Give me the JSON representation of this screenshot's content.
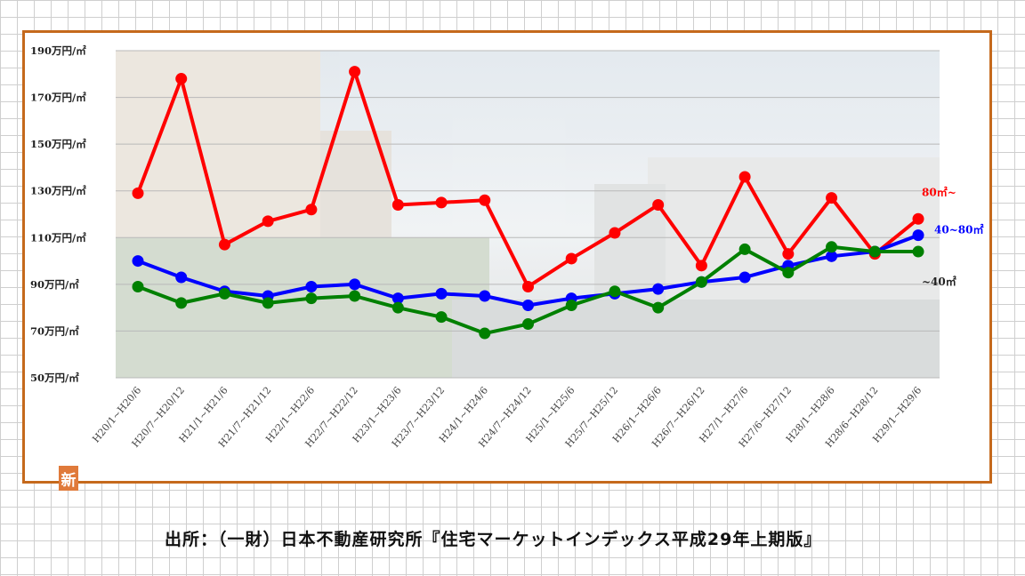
{
  "chart_data": {
    "type": "line",
    "ylim": [
      50,
      190
    ],
    "yticks": [
      "190万円/㎡",
      "170万円/㎡",
      "150万円/㎡",
      "130万円/㎡",
      "110万円/㎡",
      "90万円/㎡",
      "70万円/㎡",
      "50万円/㎡"
    ],
    "ytick_values": [
      190,
      170,
      150,
      130,
      110,
      90,
      70,
      50
    ],
    "categories": [
      "H20/1~H20/6",
      "H20/7~H20/12",
      "H21/1~H21/6",
      "H21/7~H21/12",
      "H22/1~H22/6",
      "H22/7~H22/12",
      "H23/1~H23/6",
      "H23/7~H23/12",
      "H24/1~H24/6",
      "H24/7~H24/12",
      "H25/1~H25/6",
      "H25/7~H25/12",
      "H26/1~H26/6",
      "H26/7~H26/12",
      "H27/1~H27/6",
      "H27/6~H27/12",
      "H28/1~H28/6",
      "H28/6~H28/12",
      "H29/1~H29/6"
    ],
    "series": [
      {
        "name": "80㎡~",
        "color": "#ff0000",
        "values": [
          129,
          178,
          107,
          117,
          122,
          181,
          124,
          125,
          126,
          89,
          101,
          112,
          124,
          98,
          136,
          103,
          127,
          103,
          118
        ]
      },
      {
        "name": "40~80㎡",
        "color": "#0000ff",
        "values": [
          100,
          93,
          87,
          85,
          89,
          90,
          84,
          86,
          85,
          81,
          84,
          86,
          88,
          91,
          93,
          98,
          102,
          104,
          111
        ]
      },
      {
        "name": "~40㎡",
        "color": "#008000",
        "values": [
          89,
          82,
          86,
          82,
          84,
          85,
          80,
          76,
          69,
          73,
          81,
          87,
          80,
          91,
          105,
          95,
          106,
          104,
          104
        ]
      }
    ],
    "grid": true
  },
  "badge_text": "新",
  "source_text": "出所：（一財）日本不動産研究所『住宅マーケットインデックス平成29年上期版』"
}
